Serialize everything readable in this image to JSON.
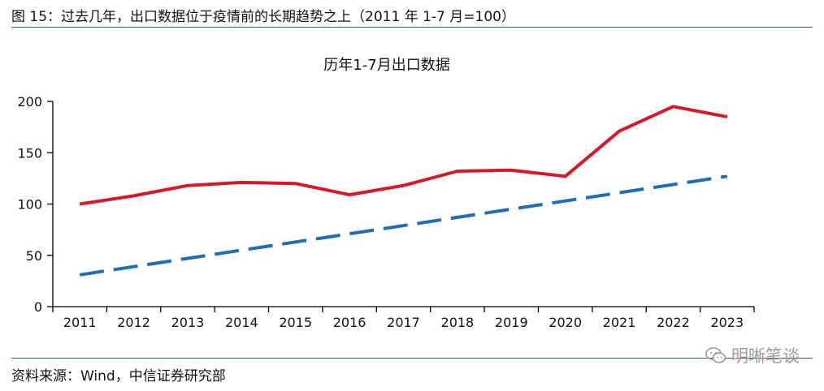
{
  "figure_title": "图 15：过去几年，出口数据位于疫情前的长期趋势之上（2011 年 1-7 月=100）",
  "source_note": "资料来源：Wind，中信证券研究部",
  "watermark_text": "明晰笔谈",
  "colors": {
    "rule": "#c0272d",
    "series_actual": "#d7182a",
    "series_trend": "#1f6db5",
    "axis": "#000000"
  },
  "chart_data": {
    "type": "line",
    "title": "历年1-7月出口数据",
    "xlabel": "",
    "ylabel": "",
    "categories": [
      "2011",
      "2012",
      "2013",
      "2014",
      "2015",
      "2016",
      "2017",
      "2018",
      "2019",
      "2020",
      "2021",
      "2022",
      "2023"
    ],
    "ylim": [
      0,
      200
    ],
    "yticks": [
      0,
      50,
      100,
      150,
      200
    ],
    "grid": false,
    "legend": "none",
    "series": [
      {
        "style": "solid",
        "color": "#d7182a",
        "values": [
          100,
          108,
          118,
          121,
          120,
          109,
          118,
          132,
          133,
          127,
          171,
          195,
          185
        ]
      },
      {
        "style": "dashed",
        "color": "#1f6db5",
        "values": [
          31,
          39,
          47,
          55,
          63,
          71,
          79,
          87,
          95,
          103,
          111,
          119,
          127
        ]
      }
    ]
  }
}
